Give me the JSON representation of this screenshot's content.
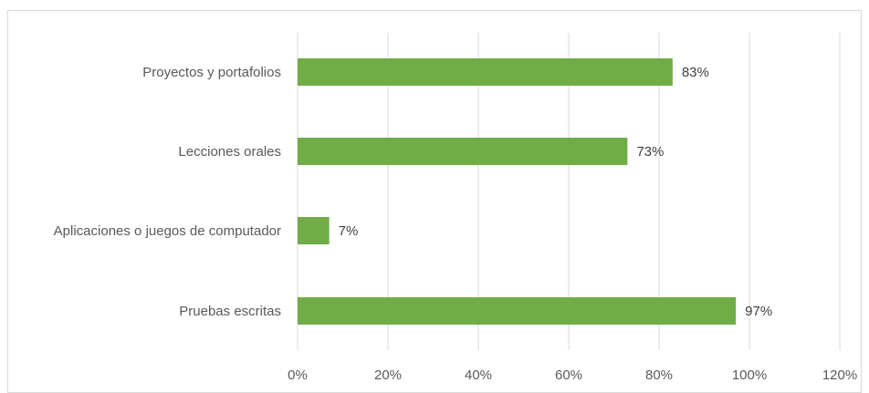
{
  "chart_data": {
    "type": "bar",
    "orientation": "horizontal",
    "categories": [
      "Proyectos y portafolios",
      "Lecciones orales",
      "Aplicaciones o juegos de computador",
      "Pruebas escritas"
    ],
    "values": [
      0.83,
      0.73,
      0.07,
      0.97
    ],
    "data_labels": [
      "83%",
      "73%",
      "7%",
      "97%"
    ],
    "xlim": [
      0,
      1.2
    ],
    "x_ticks": [
      0,
      0.2,
      0.4,
      0.6,
      0.8,
      1.0,
      1.2
    ],
    "x_tick_labels": [
      "0%",
      "20%",
      "40%",
      "60%",
      "80%",
      "100%",
      "120%"
    ],
    "grid": "vertical",
    "legend": "none",
    "bar_color": "#70ad47",
    "gridline_color": "#d9d9d9",
    "title": "",
    "xlabel": "",
    "ylabel": ""
  }
}
